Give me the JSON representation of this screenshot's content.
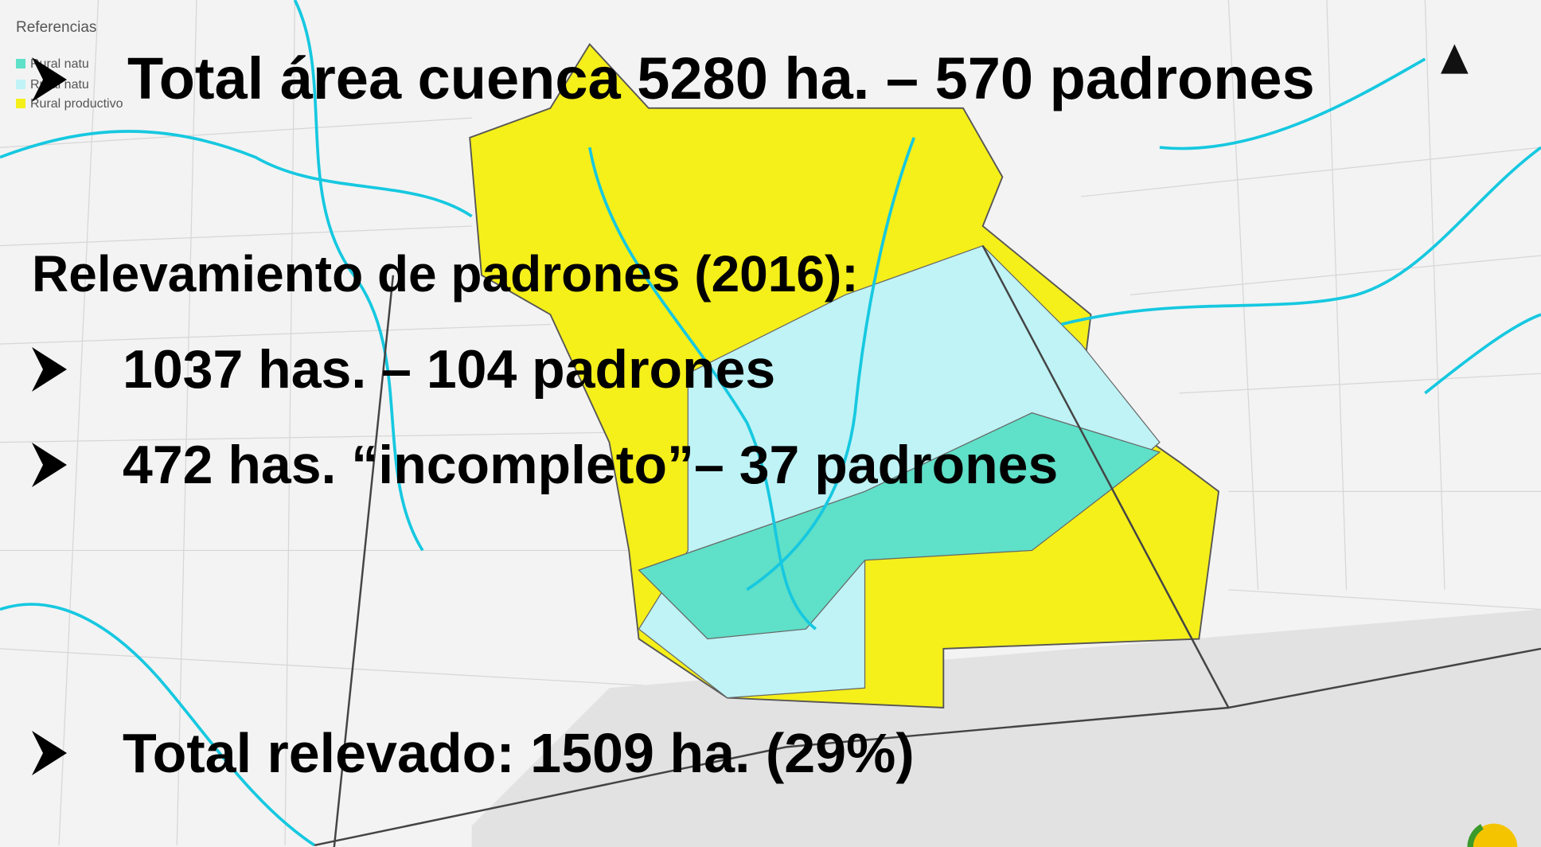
{
  "legend": {
    "title": "Referencias",
    "items": [
      "Rural natu",
      "Rural natu",
      "Rural productivo"
    ]
  },
  "bullets": {
    "total": "Total área cuenca 5280 ha. – 570 padrones",
    "heading": "Relevamiento de padrones (2016):",
    "complete": "1037 has. – 104 padrones",
    "incomplete": "472 has. “incompleto”–  37 padrones",
    "surveyed": "Total relevado: 1509 ha. (29%)"
  }
}
